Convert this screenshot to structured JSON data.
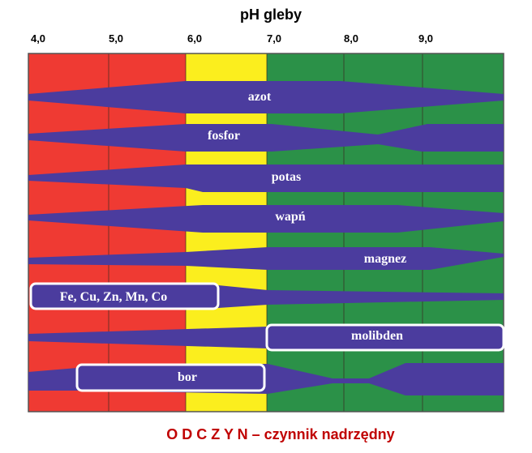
{
  "title": "pH gleby",
  "ph_ticks": [
    "4,0",
    "5,0",
    "6,0",
    "7,0",
    "8,0",
    "9,0"
  ],
  "zones": [
    {
      "range": "4,0–6,0",
      "color": "#ef3a33"
    },
    {
      "range": "6,0–7,0",
      "color": "#fbee1e"
    },
    {
      "range": "7,0+",
      "color": "#2b9148"
    }
  ],
  "band_color": "#4b3c9e",
  "nutrients": [
    {
      "name": "azot"
    },
    {
      "name": "fosfor"
    },
    {
      "name": "potas"
    },
    {
      "name": "wapń"
    },
    {
      "name": "magnez"
    },
    {
      "name": "Fe, Cu, Zn, Mn, Co"
    },
    {
      "name": "molibden"
    },
    {
      "name": "bor"
    }
  ],
  "caption": "O D C Z Y N – czynnik nadrzędny"
}
